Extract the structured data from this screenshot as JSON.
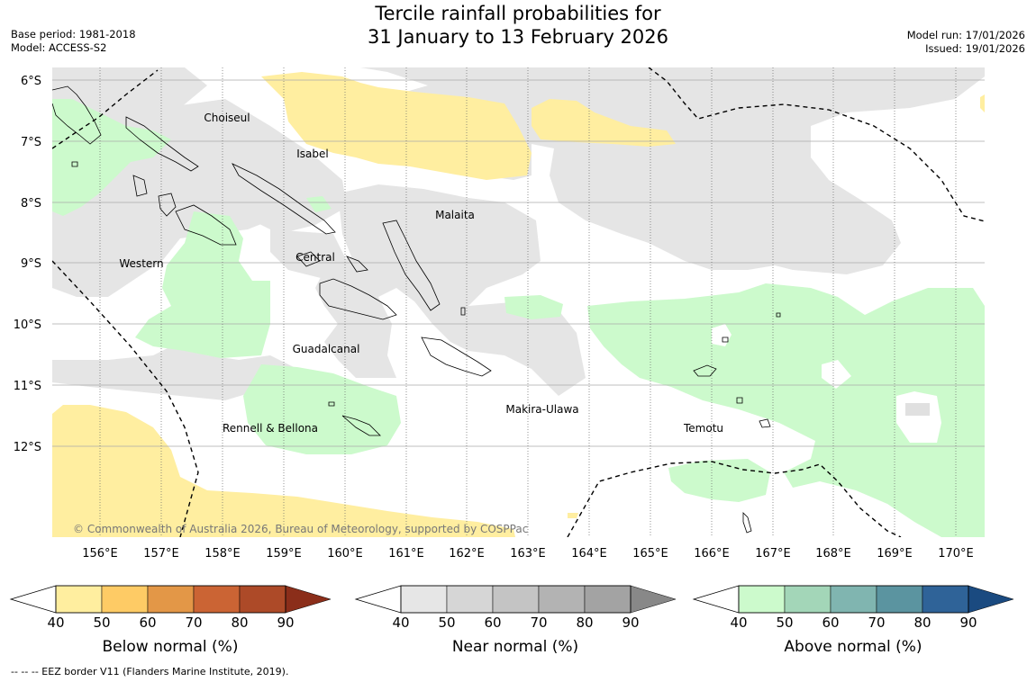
{
  "title": {
    "line1": "Tercile rainfall probabilities for",
    "line2": "31 January to 13 February 2026"
  },
  "meta_left": {
    "base_period": "Base period: 1981-2018",
    "model": "Model: ACCESS-S2"
  },
  "meta_right": {
    "model_run": "Model run: 17/01/2026",
    "issued": "Issued: 19/01/2026"
  },
  "map": {
    "lat_labels": [
      "6°S",
      "7°S",
      "8°S",
      "9°S",
      "10°S",
      "11°S",
      "12°S"
    ],
    "lon_labels": [
      "156°E",
      "157°E",
      "158°E",
      "159°E",
      "160°E",
      "161°E",
      "162°E",
      "163°E",
      "164°E",
      "165°E",
      "166°E",
      "167°E",
      "168°E",
      "169°E",
      "170°E"
    ],
    "provinces": [
      "Choiseul",
      "Isabel",
      "Malaita",
      "Western",
      "Central",
      "Guadalcanal",
      "Makira-Ulawa",
      "Rennell & Bellona",
      "Temotu"
    ],
    "copyright": "© Commonwealth of Australia 2026, Bureau of Meteorology, supported by COSPPac",
    "colors": {
      "below": "#ffeea0",
      "near": "#e5e5e5",
      "above": "#ccfacc",
      "land": "#000000",
      "grid": "#aaaaaa"
    }
  },
  "colorbars": [
    {
      "label": "Below normal (%)",
      "ticks": [
        "40",
        "50",
        "60",
        "70",
        "80",
        "90"
      ],
      "colors": [
        "#ffee9f",
        "#fecb65",
        "#e39747",
        "#cb6434",
        "#ad4a28",
        "#8b2e1a"
      ]
    },
    {
      "label": "Near normal (%)",
      "ticks": [
        "40",
        "50",
        "60",
        "70",
        "80",
        "90"
      ],
      "colors": [
        "#e6e6e6",
        "#d6d6d6",
        "#c4c4c4",
        "#b3b3b3",
        "#a3a3a3",
        "#888888"
      ]
    },
    {
      "label": "Above normal (%)",
      "ticks": [
        "40",
        "50",
        "60",
        "70",
        "80",
        "90"
      ],
      "colors": [
        "#ccfacc",
        "#a3d6b8",
        "#80b5b0",
        "#5b94a0",
        "#2f6398",
        "#1a4a80"
      ]
    }
  ],
  "eez_note": "--  --  -- EEZ border V11 (Flanders Marine Institute, 2019)."
}
